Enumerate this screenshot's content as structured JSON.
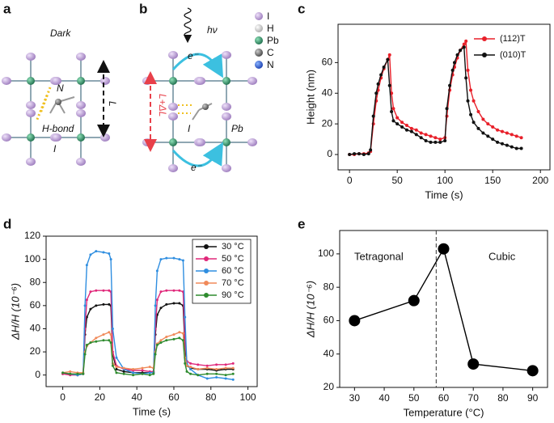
{
  "diagrams": {
    "a": {
      "letter": "a",
      "dark": "Dark",
      "n": "N",
      "h_bond": "H-bond",
      "i": "I",
      "l": "L"
    },
    "b": {
      "letter": "b",
      "hv": "hν",
      "e_top": "e⁻",
      "e_bottom": "e⁻",
      "pb": "Pb",
      "i": "I",
      "l_dl": "L+ΔL"
    },
    "legend": [
      "I",
      "H",
      "Pb",
      "C",
      "N"
    ]
  },
  "chart_data": [
    {
      "type": "line",
      "panel_label": "c",
      "xlabel": "Time (s)",
      "ylabel": "Height (nm)",
      "xlim": [
        -12,
        210
      ],
      "ylim": [
        -10,
        85
      ],
      "xticks": [
        0,
        50,
        100,
        150,
        200
      ],
      "yticks": [
        0,
        20,
        40,
        60
      ],
      "legend": "upper right",
      "x": [
        0,
        5,
        10,
        15,
        20,
        22,
        25,
        28,
        30,
        33,
        36,
        40,
        42,
        44,
        46,
        50,
        55,
        60,
        65,
        70,
        75,
        80,
        85,
        90,
        95,
        100,
        102,
        105,
        108,
        110,
        113,
        116,
        120,
        122,
        124,
        127,
        130,
        135,
        140,
        145,
        150,
        155,
        160,
        165,
        170,
        175,
        180
      ],
      "series": [
        {
          "name": "(112)T",
          "color": "#e8202a",
          "values": [
            0,
            0,
            0.5,
            0.5,
            1,
            2,
            20,
            35,
            42,
            50,
            56,
            62,
            65,
            40,
            30,
            24,
            21,
            19,
            17,
            16,
            14,
            13,
            12,
            11,
            10,
            11,
            25,
            42,
            52,
            57,
            63,
            68,
            72,
            74,
            55,
            42,
            35,
            28,
            23,
            20,
            18,
            16,
            15,
            14,
            13,
            12,
            11
          ]
        },
        {
          "name": "(010)T",
          "color": "#111111",
          "values": [
            0,
            0.5,
            0.5,
            0,
            0.5,
            3,
            25,
            40,
            46,
            52,
            57,
            62,
            45,
            28,
            22,
            20,
            18,
            16,
            15,
            13,
            11,
            9,
            8,
            8,
            8,
            9,
            30,
            45,
            55,
            60,
            65,
            68,
            70,
            50,
            35,
            26,
            21,
            17,
            14,
            12,
            10,
            8,
            7,
            6,
            5,
            4,
            4
          ]
        }
      ]
    },
    {
      "type": "line",
      "panel_label": "d",
      "xlabel": "Time (s)",
      "ylabel": "ΔH/H (10⁻⁶)",
      "xlim": [
        -9,
        105
      ],
      "ylim": [
        -10,
        120
      ],
      "xticks": [
        0,
        20,
        40,
        60,
        80,
        100
      ],
      "yticks": [
        0,
        20,
        40,
        60,
        80,
        100,
        120
      ],
      "legend": "upper right",
      "x": [
        0,
        4,
        8,
        11,
        12,
        13,
        15,
        18,
        22,
        25,
        26,
        27,
        29,
        33,
        38,
        43,
        47,
        49,
        50,
        51,
        53,
        56,
        60,
        63,
        65,
        66,
        67,
        69,
        73,
        78,
        83,
        88,
        92
      ],
      "series": [
        {
          "name": "30 °C",
          "color": "#111111",
          "values": [
            1,
            1,
            0,
            1,
            35,
            50,
            57,
            60,
            61,
            61,
            60,
            18,
            5,
            3,
            2,
            2,
            2,
            2,
            35,
            52,
            58,
            61,
            62,
            62,
            60,
            25,
            8,
            6,
            5,
            5,
            4,
            5,
            5
          ]
        },
        {
          "name": "50 °C",
          "color": "#e0287a",
          "values": [
            1,
            0,
            0,
            1,
            40,
            65,
            72,
            73,
            73,
            73,
            72,
            20,
            8,
            5,
            4,
            4,
            3,
            3,
            40,
            65,
            72,
            73,
            73,
            73,
            72,
            30,
            12,
            10,
            9,
            8,
            9,
            9,
            10
          ]
        },
        {
          "name": "60 °C",
          "color": "#2f8ee0",
          "values": [
            2,
            1,
            0,
            1,
            60,
            95,
            104,
            107,
            106,
            105,
            100,
            40,
            15,
            5,
            2,
            1,
            2,
            2,
            60,
            90,
            100,
            101,
            101,
            100,
            99,
            50,
            10,
            5,
            0,
            -3,
            -2,
            -3,
            -4
          ]
        },
        {
          "name": "70 °C",
          "color": "#f08a5a",
          "values": [
            2,
            3,
            2,
            2,
            20,
            25,
            28,
            32,
            35,
            37,
            35,
            10,
            7,
            6,
            5,
            6,
            7,
            6,
            20,
            27,
            30,
            33,
            35,
            37,
            36,
            15,
            8,
            7,
            5,
            6,
            5,
            6,
            6
          ]
        },
        {
          "name": "90 °C",
          "color": "#2e8b2e",
          "values": [
            2,
            1,
            1,
            1,
            18,
            26,
            28,
            29,
            30,
            30,
            28,
            8,
            2,
            1,
            0,
            1,
            0,
            1,
            18,
            26,
            28,
            30,
            31,
            32,
            30,
            10,
            3,
            1,
            0,
            1,
            1,
            0,
            1
          ]
        }
      ]
    },
    {
      "type": "line",
      "panel_label": "e",
      "xlabel": "Temperature (°C)",
      "ylabel": "ΔH/H (10⁻⁶)",
      "xlim": [
        25,
        95
      ],
      "ylim": [
        20,
        114
      ],
      "xticks": [
        30,
        40,
        50,
        60,
        70,
        80,
        90
      ],
      "yticks": [
        20,
        40,
        60,
        80,
        100
      ],
      "phase_boundary": 57.5,
      "annotations": [
        "Tetragonal",
        "Cubic"
      ],
      "x": [
        30,
        50,
        60,
        70,
        90
      ],
      "series": [
        {
          "color": "#000000",
          "values": [
            60,
            72,
            103,
            34,
            30
          ]
        }
      ]
    }
  ]
}
